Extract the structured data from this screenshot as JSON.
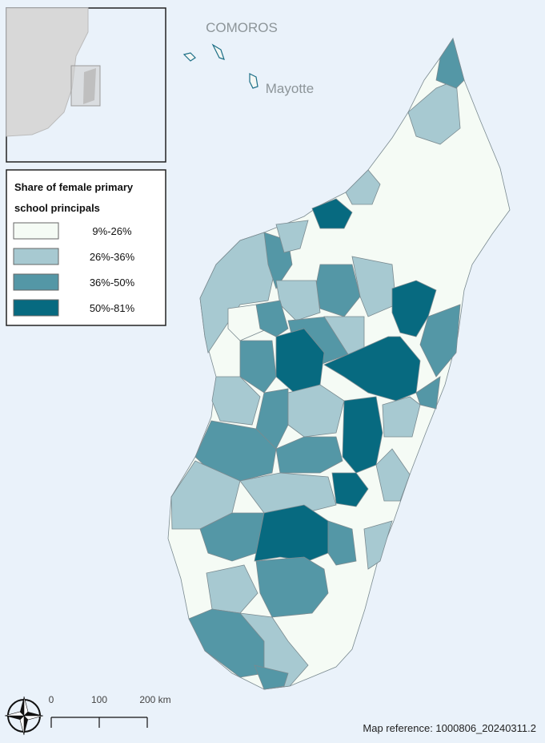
{
  "labels": {
    "comoros": "COMOROS",
    "mayotte": "Mayotte"
  },
  "legend": {
    "title_lines": [
      "Share of female primary",
      "school principals"
    ],
    "items": [
      {
        "label": "9%-26%",
        "color": "#f5fbf5"
      },
      {
        "label": "26%-36%",
        "color": "#a7c9d1"
      },
      {
        "label": "36%-50%",
        "color": "#5497a6"
      },
      {
        "label": "50%-81%",
        "color": "#076a80"
      }
    ]
  },
  "scale_bar": {
    "labels": [
      "0",
      "100",
      "200 km"
    ]
  },
  "map_reference": "Map reference: 1000806_20240311.2"
}
